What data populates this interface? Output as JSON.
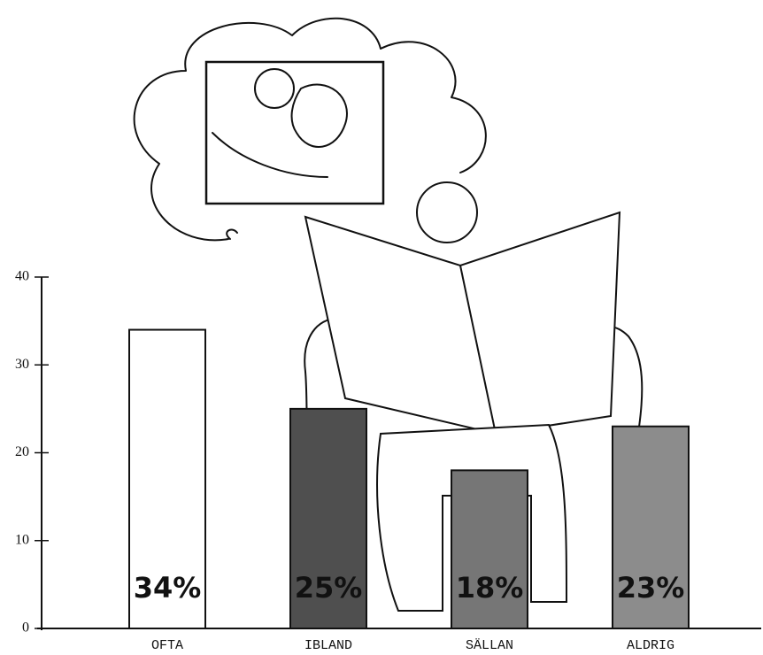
{
  "chart_data": {
    "type": "bar",
    "categories": [
      "OFTA",
      "IBLAND",
      "SÄLLAN",
      "ALDRIG"
    ],
    "values": [
      34,
      25,
      18,
      23
    ],
    "value_labels": [
      "34%",
      "25%",
      "18%",
      "23%"
    ],
    "colors": [
      "#ffffff",
      "#4f4f4f",
      "#767676",
      "#8c8c8c"
    ],
    "ylim": [
      0,
      40
    ],
    "yticks": [
      0,
      10,
      20,
      30,
      40
    ]
  }
}
